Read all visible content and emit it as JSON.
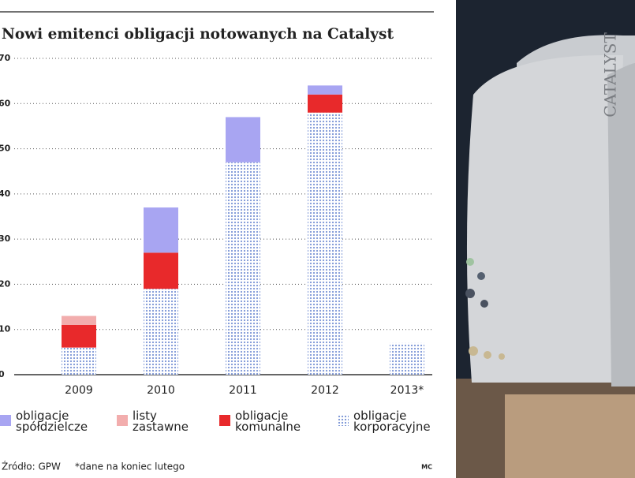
{
  "chart_data": {
    "type": "stacked-bar",
    "title": "Nowi emitenci obligacji notowanych na Catalyst",
    "categories": [
      "2009",
      "2010",
      "2011",
      "2012",
      "2013*"
    ],
    "series": [
      {
        "name": "obligacje spółdzielcze",
        "color": "#a8a5f2",
        "values": [
          0,
          10,
          10,
          2,
          0
        ]
      },
      {
        "name": "listy zastawne",
        "color": "#f2adad",
        "values": [
          2,
          0,
          0,
          0,
          0
        ]
      },
      {
        "name": "obligacje komunalne",
        "color": "#e8292b",
        "values": [
          5,
          8,
          0,
          4,
          0
        ]
      },
      {
        "name": "obligacje korporacyjne",
        "color": "#7b95d6",
        "values": [
          6,
          19,
          47,
          58,
          7
        ]
      }
    ],
    "ylim": [
      0,
      70
    ],
    "yticks": [
      0,
      10,
      20,
      30,
      40,
      50,
      60,
      70
    ],
    "grid": true,
    "source": "Źródło: GPW",
    "note": "*dane na koniec lutego",
    "author": "MC"
  },
  "photo": {
    "text": "CATALYST"
  }
}
